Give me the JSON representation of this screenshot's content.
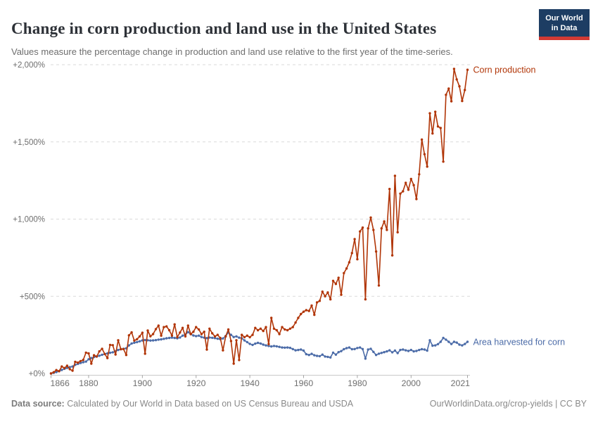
{
  "header": {
    "title": "Change in corn production and land use in the United States",
    "subtitle": "Values measure the percentage change in production and land use relative to the first year of the time-series.",
    "logo": {
      "line1": "Our World",
      "line2": "in Data",
      "bg_color": "#1d3d63",
      "bar_color": "#d23a34"
    }
  },
  "chart_data": {
    "type": "line",
    "title": "Change in corn production and land use in the United States",
    "subtitle": "Values measure the percentage change in production and land use relative to the first year of the time-series.",
    "xlabel": "",
    "ylabel": "",
    "grid": "horizontal dashed",
    "grid_color": "#dadada",
    "axis_color": "#c9c9c9",
    "tick_mark_color": "#a3a3a3",
    "tick_label_color": "#6e6e6e",
    "legend_position": "line-end labels (right of last point)",
    "ylim": [
      0,
      2000
    ],
    "x": {
      "start": 1866,
      "end": 2021,
      "step": 1
    },
    "yticks": [
      {
        "v": 0,
        "label": "+0%"
      },
      {
        "v": 500,
        "label": "+500%"
      },
      {
        "v": 1000,
        "label": "+1,000%"
      },
      {
        "v": 1500,
        "label": "+1,500%"
      },
      {
        "v": 2000,
        "label": "+2,000%"
      }
    ],
    "xticks": [
      {
        "v": 1866,
        "label": "1866",
        "align": "start"
      },
      {
        "v": 1880,
        "label": "1880",
        "align": "middle"
      },
      {
        "v": 1900,
        "label": "1900",
        "align": "middle"
      },
      {
        "v": 1920,
        "label": "1920",
        "align": "middle"
      },
      {
        "v": 1940,
        "label": "1940",
        "align": "middle"
      },
      {
        "v": 1960,
        "label": "1960",
        "align": "middle"
      },
      {
        "v": 1980,
        "label": "1980",
        "align": "middle"
      },
      {
        "v": 2000,
        "label": "2000",
        "align": "middle"
      },
      {
        "v": 2021,
        "label": "2021",
        "align": "end"
      }
    ],
    "unit": "% change relative to 1866",
    "series": [
      {
        "name": "Corn production",
        "color": "#B13507",
        "values": [
          0,
          8,
          22,
          15,
          45,
          35,
          50,
          28,
          18,
          75,
          70,
          80,
          88,
          135,
          130,
          64,
          118,
          110,
          143,
          160,
          126,
          100,
          185,
          183,
          123,
          215,
          157,
          158,
          120,
          247,
          266,
          213,
          222,
          240,
          264,
          128,
          278,
          241,
          255,
          287,
          310,
          245,
          300,
          305,
          280,
          245,
          318,
          235,
          265,
          295,
          240,
          310,
          255,
          270,
          300,
          285,
          255,
          270,
          155,
          290,
          260,
          240,
          250,
          230,
          150,
          240,
          285,
          210,
          64,
          215,
          87,
          250,
          235,
          245,
          235,
          250,
          295,
          280,
          290,
          275,
          300,
          190,
          360,
          290,
          280,
          255,
          300,
          285,
          280,
          290,
          300,
          330,
          360,
          385,
          400,
          410,
          405,
          440,
          380,
          460,
          470,
          530,
          500,
          525,
          480,
          600,
          580,
          620,
          510,
          650,
          680,
          720,
          780,
          870,
          740,
          920,
          945,
          480,
          940,
          1010,
          930,
          790,
          570,
          940,
          985,
          930,
          1195,
          765,
          1280,
          915,
          1165,
          1180,
          1235,
          1190,
          1260,
          1220,
          1130,
          1290,
          1515,
          1420,
          1340,
          1685,
          1555,
          1695,
          1600,
          1590,
          1372,
          1805,
          1845,
          1763,
          1973,
          1905,
          1860,
          1765,
          1836,
          1967
        ]
      },
      {
        "name": "Area harvested for corn",
        "color": "#4C6CA8",
        "values": [
          0,
          4,
          9,
          15,
          23,
          30,
          36,
          41,
          45,
          56,
          62,
          68,
          73,
          77,
          92,
          100,
          106,
          110,
          115,
          121,
          126,
          130,
          134,
          137,
          143,
          152,
          157,
          160,
          163,
          182,
          194,
          199,
          203,
          208,
          214,
          217,
          215,
          213,
          214,
          216,
          219,
          221,
          224,
          228,
          230,
          232,
          230,
          228,
          233,
          245,
          252,
          268,
          255,
          246,
          242,
          245,
          236,
          232,
          229,
          233,
          231,
          229,
          225,
          222,
          227,
          243,
          265,
          250,
          236,
          240,
          232,
          228,
          214,
          203,
          192,
          185,
          193,
          198,
          194,
          187,
          182,
          178,
          175,
          178,
          176,
          172,
          168,
          167,
          168,
          166,
          158,
          150,
          152,
          155,
          148,
          125,
          120,
          127,
          118,
          114,
          112,
          122,
          110,
          107,
          104,
          135,
          122,
          138,
          145,
          157,
          164,
          168,
          157,
          158,
          165,
          168,
          158,
          96,
          155,
          160,
          140,
          120,
          128,
          133,
          138,
          143,
          150,
          137,
          148,
          132,
          152,
          155,
          150,
          146,
          152,
          143,
          146,
          152,
          157,
          155,
          148,
          215,
          180,
          182,
          190,
          205,
          230,
          219,
          205,
          191,
          205,
          200,
          187,
          182,
          191,
          205
        ]
      }
    ]
  },
  "footer": {
    "source_label": "Data source:",
    "source_text": " Calculated by Our World in Data based on US Census Bureau and USDA",
    "link": "OurWorldinData.org/crop-yields | CC BY"
  }
}
